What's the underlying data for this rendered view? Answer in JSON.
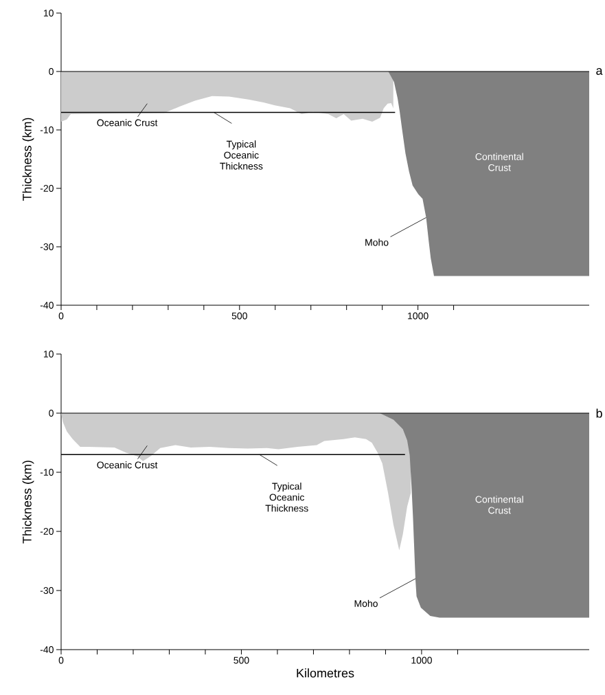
{
  "chart_data": [
    {
      "type": "area",
      "ylabel": "Thickness (km)",
      "xlim": [
        0,
        1480
      ],
      "ylim": [
        -40,
        10
      ],
      "xticks": [
        0,
        {
          "value": 100,
          "label": null
        },
        {
          "value": 200,
          "label": null
        },
        {
          "value": 300,
          "label": null
        },
        {
          "value": 400,
          "label": null
        },
        500,
        {
          "value": 600,
          "label": null
        },
        {
          "value": 700,
          "label": null
        },
        {
          "value": 800,
          "label": null
        },
        {
          "value": 900,
          "label": null
        },
        1000,
        {
          "value": 1100,
          "label": null
        }
      ],
      "yticks": [
        -40,
        -30,
        -20,
        -10,
        0,
        10
      ],
      "ref_lines": [
        {
          "axis": "y",
          "value": 0,
          "color": "#000000"
        }
      ],
      "series": [
        {
          "name": "Oceanic Crust",
          "color": "#cccccc",
          "x": [
            0,
            16,
            27,
            289,
            332,
            375,
            423,
            471,
            525,
            567,
            599,
            642,
            674,
            706,
            749,
            771,
            792,
            813,
            845,
            872,
            894,
            904,
            915,
            925,
            931
          ],
          "values": [
            -8.6,
            -8.2,
            -7.3,
            -7.1,
            -6.0,
            -5.0,
            -4.2,
            -4.3,
            -4.8,
            -5.3,
            -5.8,
            -6.3,
            -7.3,
            -6.9,
            -7.3,
            -8.0,
            -7.3,
            -8.4,
            -8.1,
            -8.6,
            -7.9,
            -6.3,
            -5.5,
            -5.4,
            -6.3
          ]
        },
        {
          "name": "Continental Crust",
          "color": "#808080",
          "x": [
            917,
            933,
            943,
            949,
            956,
            965,
            975,
            985,
            1001,
            1013,
            1023,
            1030,
            1036,
            1045,
            1480
          ],
          "values": [
            0,
            -1.8,
            -4.6,
            -6.9,
            -10.1,
            -14,
            -17.1,
            -19.5,
            -21,
            -21.8,
            -25,
            -28.9,
            -32,
            -35,
            -35
          ]
        },
        {
          "type": "line",
          "color": "#000000",
          "x": [
            0,
            936
          ],
          "values": [
            -7,
            -7
          ]
        }
      ],
      "annotations": [
        {
          "text": "Typical Oceanic Thickness",
          "x": 428,
          "y": -7
        },
        {
          "text": "Moho",
          "x": 1023,
          "y": -25
        },
        "a"
      ]
    },
    {
      "type": "area",
      "xlabel": "Kilometres",
      "ylabel": "Thickness (km)",
      "xlim": [
        0,
        1465
      ],
      "ylim": [
        -40,
        10
      ],
      "xticks": [
        0,
        {
          "value": 100,
          "label": null
        },
        {
          "value": 200,
          "label": null
        },
        {
          "value": 300,
          "label": null
        },
        {
          "value": 400,
          "label": null
        },
        500,
        {
          "value": 600,
          "label": null
        },
        {
          "value": 700,
          "label": null
        },
        {
          "value": 800,
          "label": null
        },
        {
          "value": 900,
          "label": null
        },
        1000,
        {
          "value": 1100,
          "label": null
        }
      ],
      "yticks": [
        -40,
        -30,
        -20,
        -10,
        0,
        10
      ],
      "ref_lines": [
        {
          "axis": "y",
          "value": 0,
          "color": "#000000"
        }
      ],
      "series": [
        {
          "name": "Oceanic Crust",
          "color": "#cccccc",
          "x": [
            0,
            5,
            16,
            32,
            53,
            74,
            148,
            180,
            211,
            227,
            248,
            275,
            317,
            360,
            412,
            465,
            518,
            571,
            603,
            656,
            709,
            730,
            783,
            815,
            846,
            862,
            878,
            891,
            907,
            922,
            938,
            948,
            960,
            970
          ],
          "values": [
            0,
            -1.5,
            -3.1,
            -4.4,
            -5.7,
            -5.7,
            -5.8,
            -6.7,
            -7.3,
            -8.1,
            -7.3,
            -5.9,
            -5.4,
            -5.8,
            -5.7,
            -5.9,
            -6.0,
            -5.9,
            -6.1,
            -5.7,
            -5.4,
            -4.7,
            -4.4,
            -4.1,
            -4.4,
            -5.0,
            -6.7,
            -8.5,
            -13.5,
            -18.9,
            -23.2,
            -20.5,
            -15.8,
            -13.5
          ]
        },
        {
          "name": "Continental Crust",
          "color": "#808080",
          "x": [
            884,
            922,
            948,
            960,
            967,
            972,
            976,
            979,
            983,
            986,
            998,
            1024,
            1050,
            1465
          ],
          "values": [
            0,
            -1.1,
            -2.7,
            -4.6,
            -7.1,
            -12.3,
            -17.4,
            -22,
            -28.2,
            -31,
            -32.9,
            -34.3,
            -34.6,
            -34.6
          ]
        },
        {
          "type": "line",
          "color": "#000000",
          "x": [
            0,
            954
          ],
          "values": [
            -7,
            -7
          ]
        }
      ],
      "annotations": [
        {
          "text": "Typical Oceanic Thickness",
          "x": 550,
          "y": -7
        },
        {
          "text": "Moho",
          "x": 983,
          "y": -28
        },
        "b"
      ]
    }
  ]
}
